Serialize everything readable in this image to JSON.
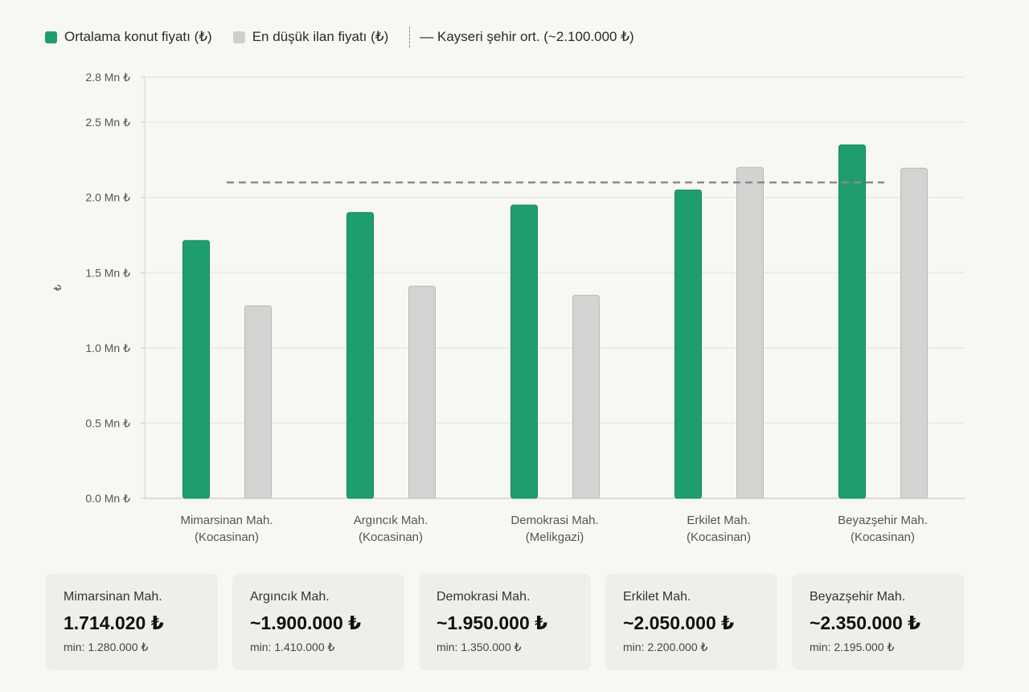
{
  "legend": {
    "avg_label": "Ortalama konut fiyatı (₺)",
    "min_label": "En düşük ilan fiyatı (₺)",
    "ref_label": "— Kayseri şehir ort. (~2.100.000 ₺)"
  },
  "colors": {
    "avg": "#1e9e6e",
    "min": "#d3d3d1",
    "ref_line": "#8a8a8a",
    "grid": "#e2e2de"
  },
  "chart_data": {
    "type": "bar",
    "categories": [
      [
        "Mimarsinan Mah.",
        "(Kocasinan)"
      ],
      [
        "Argıncık Mah.",
        "(Kocasinan)"
      ],
      [
        "Demokrasi Mah.",
        "(Melikgazi)"
      ],
      [
        "Erkilet Mah.",
        "(Kocasinan)"
      ],
      [
        "Beyazşehir Mah.",
        "(Kocasinan)"
      ]
    ],
    "series": [
      {
        "name": "Ortalama konut fiyatı (₺)",
        "values": [
          1714020,
          1900000,
          1950000,
          2050000,
          2350000
        ]
      },
      {
        "name": "En düşük ilan fiyatı (₺)",
        "values": [
          1280000,
          1410000,
          1350000,
          2200000,
          2195000
        ]
      }
    ],
    "reference_line": {
      "value": 2100000
    },
    "ylabel": "₺",
    "ylim": [
      0,
      2800000
    ],
    "yticks": [
      0,
      500000,
      1000000,
      1500000,
      2000000,
      2500000,
      2800000
    ],
    "ytick_labels": [
      "0.0 Mn ₺",
      "0.5 Mn ₺",
      "1.0 Mn ₺",
      "1.5 Mn ₺",
      "2.0 Mn ₺",
      "2.5 Mn ₺",
      "2.8 Mn ₺"
    ],
    "grid": true,
    "legend_position": "top-left"
  },
  "cards": [
    {
      "name": "Mimarsinan Mah.",
      "price": "1.714.020 ₺",
      "min": "min: 1.280.000 ₺"
    },
    {
      "name": "Argıncık Mah.",
      "price": "~1.900.000 ₺",
      "min": "min: 1.410.000 ₺"
    },
    {
      "name": "Demokrasi Mah.",
      "price": "~1.950.000 ₺",
      "min": "min: 1.350.000 ₺"
    },
    {
      "name": "Erkilet Mah.",
      "price": "~2.050.000 ₺",
      "min": "min: 2.200.000 ₺"
    },
    {
      "name": "Beyazşehir Mah.",
      "price": "~2.350.000 ₺",
      "min": "min: 2.195.000 ₺"
    }
  ]
}
